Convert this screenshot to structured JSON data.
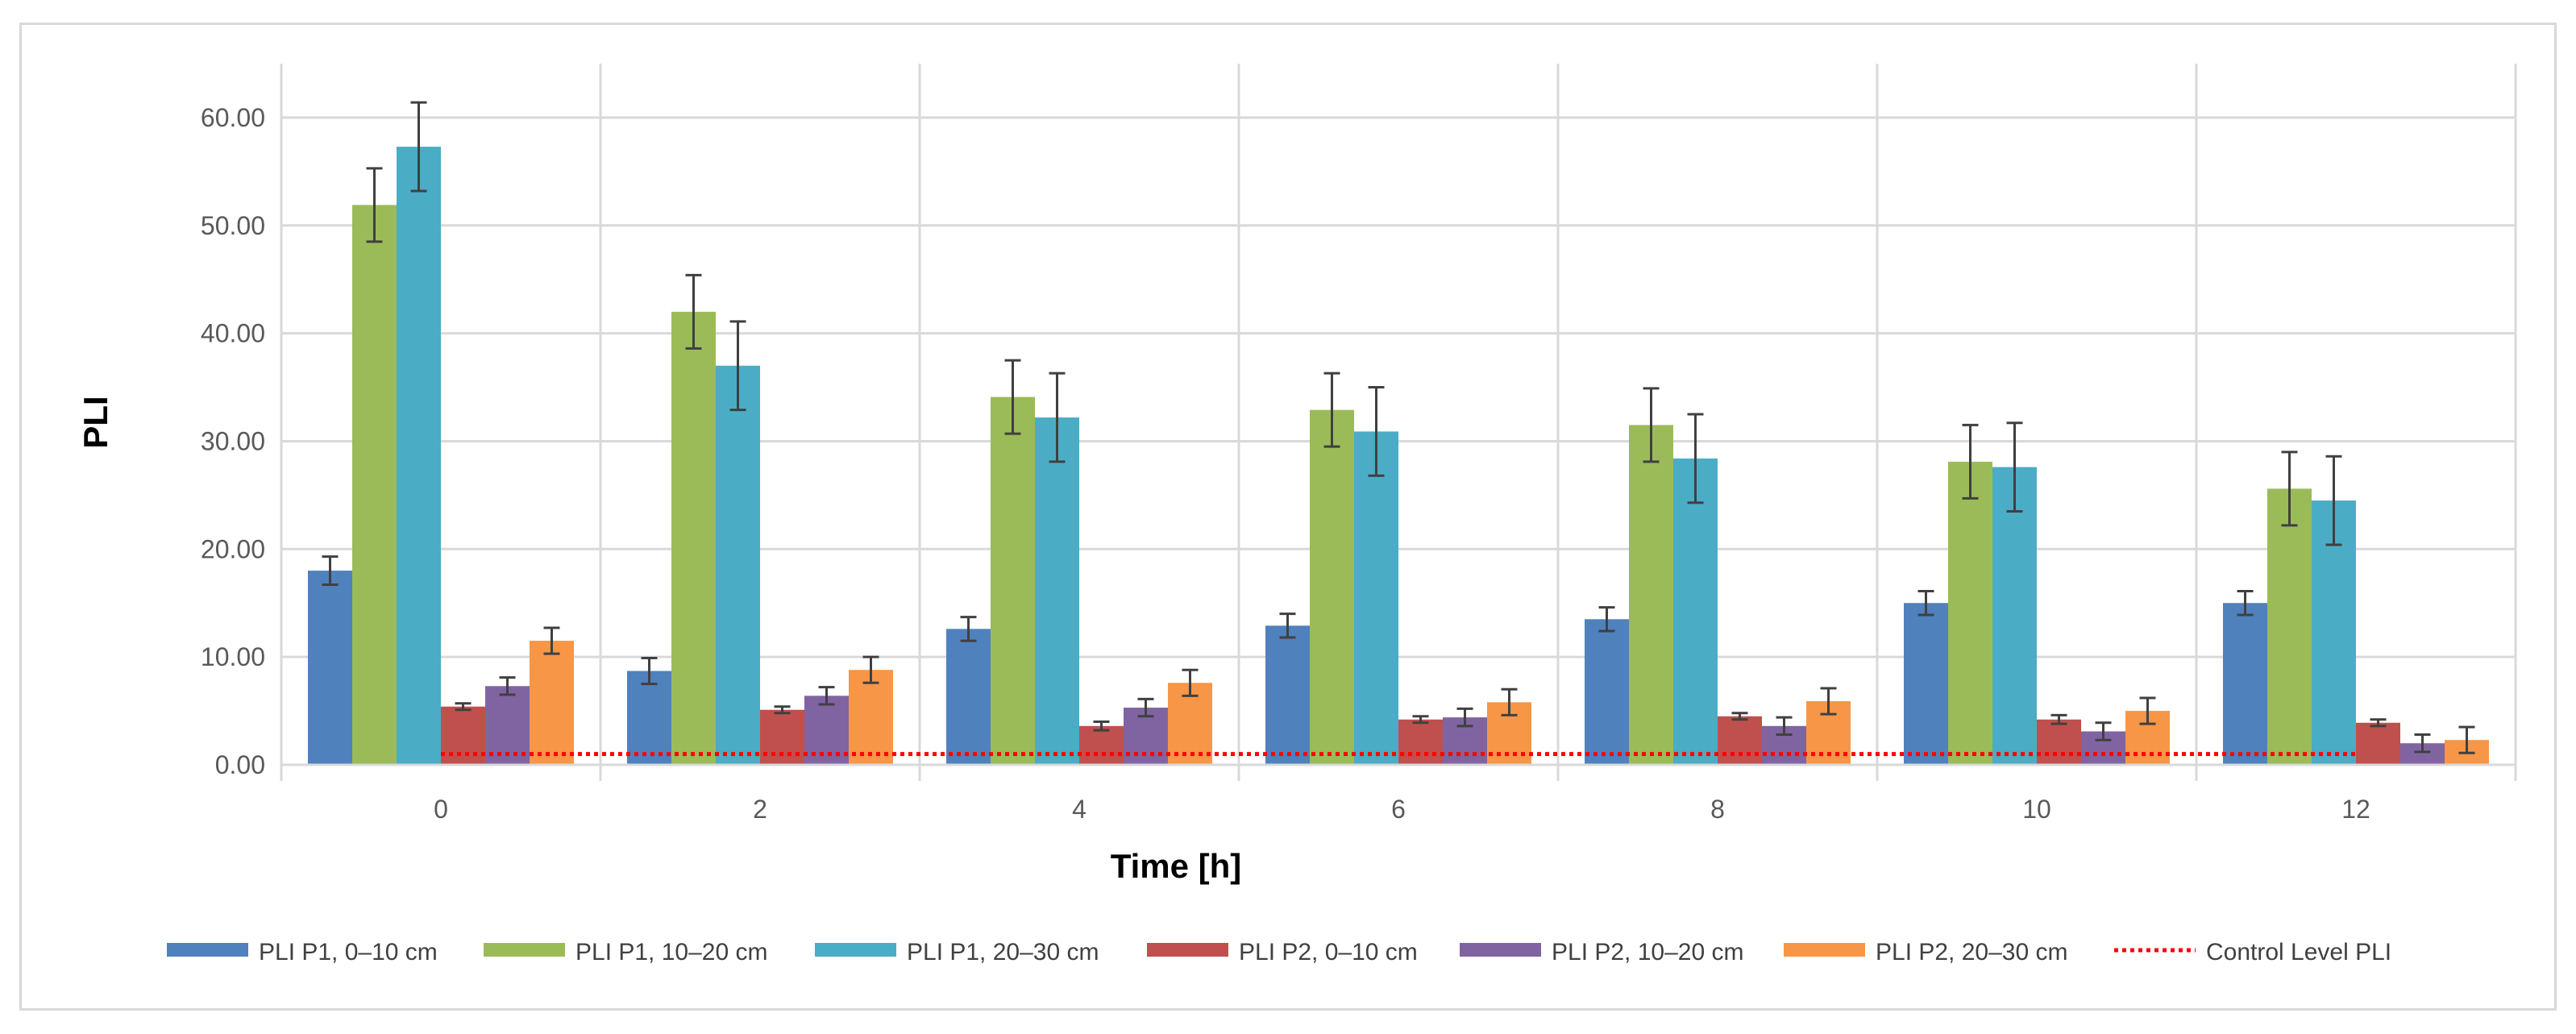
{
  "chart_data": {
    "type": "bar",
    "title": "",
    "xlabel": "Time [h]",
    "ylabel": "PLI",
    "ylim": [
      0,
      65
    ],
    "yticks": [
      0,
      10,
      20,
      30,
      40,
      50,
      60
    ],
    "ytick_labels": [
      "0.00",
      "10.00",
      "20.00",
      "30.00",
      "40.00",
      "50.00",
      "60.00"
    ],
    "categories": [
      "0",
      "2",
      "4",
      "6",
      "8",
      "10",
      "12"
    ],
    "grid": true,
    "legend_position": "bottom",
    "series": [
      {
        "name": "PLI P1, 0–10 cm",
        "color": "#4f81bd",
        "values": [
          18.0,
          8.7,
          12.6,
          12.9,
          13.5,
          15.0,
          15.0
        ],
        "errors": [
          1.3,
          1.2,
          1.1,
          1.1,
          1.1,
          1.1,
          1.1
        ]
      },
      {
        "name": "PLI P1, 10–20 cm",
        "color": "#9bbb59",
        "values": [
          51.9,
          42.0,
          34.1,
          32.9,
          31.5,
          28.1,
          25.6
        ],
        "errors": [
          3.4,
          3.4,
          3.4,
          3.4,
          3.4,
          3.4,
          3.4
        ]
      },
      {
        "name": "PLI P1, 20–30 cm",
        "color": "#4bacc6",
        "values": [
          57.3,
          37.0,
          32.2,
          30.9,
          28.4,
          27.6,
          24.5
        ],
        "errors": [
          4.1,
          4.1,
          4.1,
          4.1,
          4.1,
          4.1,
          4.1
        ]
      },
      {
        "name": "PLI P2, 0–10 cm",
        "color": "#c0504d",
        "values": [
          5.4,
          5.1,
          3.6,
          4.2,
          4.5,
          4.2,
          3.9
        ],
        "errors": [
          0.3,
          0.3,
          0.4,
          0.3,
          0.3,
          0.4,
          0.3
        ]
      },
      {
        "name": "PLI P2, 10–20 cm",
        "color": "#8064a2",
        "values": [
          7.3,
          6.4,
          5.3,
          4.4,
          3.6,
          3.1,
          2.0
        ],
        "errors": [
          0.8,
          0.8,
          0.8,
          0.8,
          0.8,
          0.8,
          0.8
        ]
      },
      {
        "name": "PLI P2, 20–30 cm",
        "color": "#f79646",
        "values": [
          11.5,
          8.8,
          7.6,
          5.8,
          5.9,
          5.0,
          2.3
        ],
        "errors": [
          1.2,
          1.2,
          1.2,
          1.2,
          1.2,
          1.2,
          1.2
        ]
      }
    ],
    "reference_line": {
      "name": "Control Level PLI",
      "value": 1.0,
      "color": "#ff0000",
      "style": "dotted"
    }
  }
}
